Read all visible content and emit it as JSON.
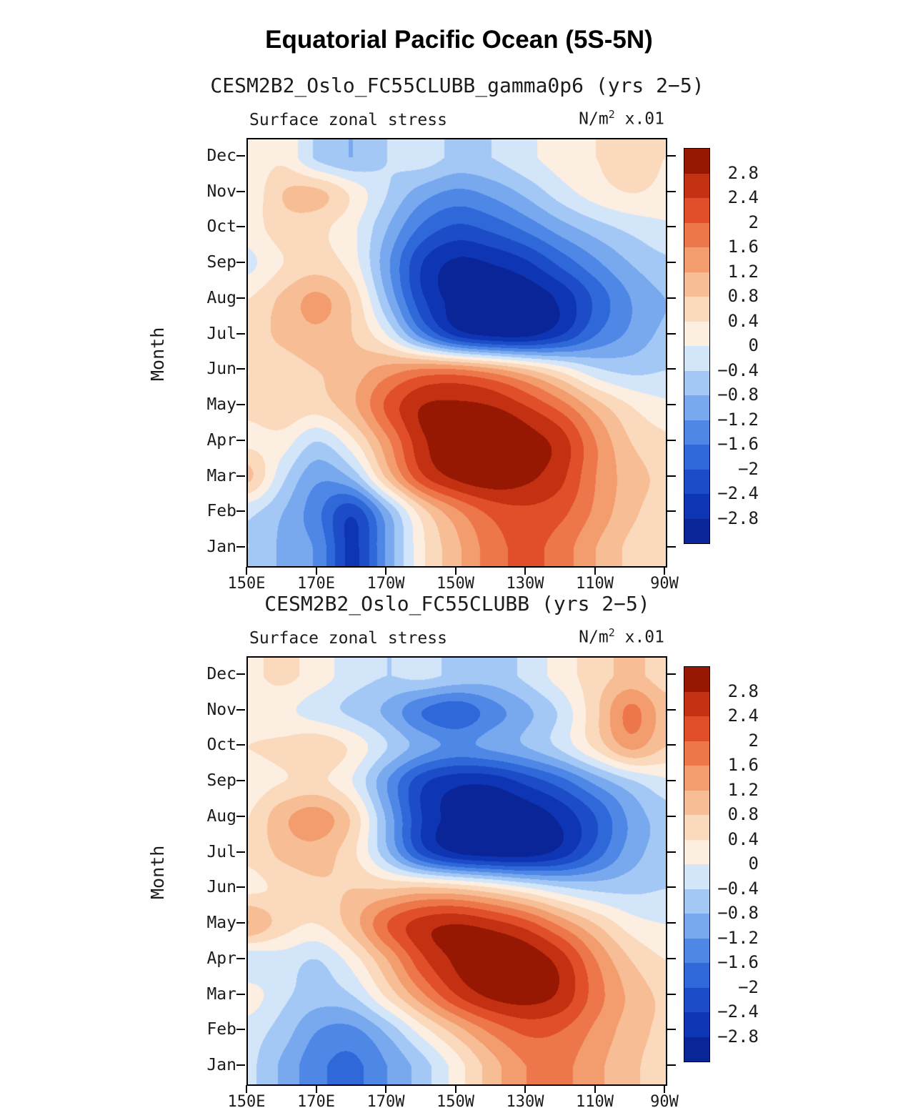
{
  "page": {
    "title": "Equatorial Pacific Ocean (5S-5N)"
  },
  "panels": [
    {
      "title": "CESM2B2_Oslo_FC55CLUBB_gamma0p6 (yrs 2−5)",
      "field_label": "Surface zonal stress",
      "units": {
        "prefix": "N/m",
        "exp": "2",
        "suffix": " x.01"
      },
      "ylabel": "Month"
    },
    {
      "title": "CESM2B2_Oslo_FC55CLUBB (yrs 2−5)",
      "field_label": "Surface zonal stress",
      "units": {
        "prefix": "N/m",
        "exp": "2",
        "suffix": " x.01"
      },
      "ylabel": "Month"
    }
  ],
  "colorbar": {
    "tick_labels": [
      "2.8",
      "2.4",
      "2",
      "1.6",
      "1.2",
      "0.8",
      "0.4",
      "0",
      "−0.4",
      "−0.8",
      "−1.2",
      "−1.6",
      "−2",
      "−2.4",
      "−2.8"
    ],
    "levels": [
      -2.8,
      -2.4,
      -2,
      -1.6,
      -1.2,
      -0.8,
      -0.4,
      0,
      0.4,
      0.8,
      1.2,
      1.6,
      2,
      2.4,
      2.8
    ],
    "colors": [
      "#0A2598",
      "#0E36B4",
      "#1C4CC8",
      "#2F68D9",
      "#4E87E6",
      "#78A9EF",
      "#A4C8F5",
      "#D3E5F9",
      "#FCEEE1",
      "#FAD9BC",
      "#F7BD95",
      "#F39C6E",
      "#ED774A",
      "#E04F29",
      "#C33112",
      "#961803"
    ]
  },
  "chart_data": [
    {
      "type": "heatmap",
      "title": "CESM2B2_Oslo_FC55CLUBB_gamma0p6 (yrs 2−5)",
      "field": "Surface zonal stress",
      "units": "N/m^2 x.01",
      "x_ticks": [
        "150E",
        "170E",
        "170W",
        "150W",
        "130W",
        "110W",
        "90W"
      ],
      "x_grid_lon_degE": [
        150,
        160,
        170,
        180,
        190,
        200,
        210,
        220,
        230,
        240,
        250,
        260,
        270
      ],
      "y_categories": [
        "Jan",
        "Feb",
        "Mar",
        "Apr",
        "May",
        "Jun",
        "Jul",
        "Aug",
        "Sep",
        "Oct",
        "Nov",
        "Dec"
      ],
      "levels_min": -2.8,
      "levels_max": 2.8,
      "levels_step": 0.4,
      "values_rows_jan_to_dec": [
        [
          -0.4,
          -0.9,
          -1.3,
          -2.5,
          -1.1,
          0.3,
          1.1,
          1.8,
          2.1,
          1.8,
          1.2,
          0.7,
          0.5
        ],
        [
          -0.3,
          -0.8,
          -1.5,
          -2.3,
          -0.9,
          0.6,
          1.5,
          2.1,
          2.3,
          2.1,
          1.5,
          0.9,
          0.6
        ],
        [
          0.9,
          -0.3,
          -1.1,
          -0.7,
          0.9,
          2.3,
          2.9,
          3.1,
          2.9,
          2.5,
          1.6,
          1.0,
          0.7
        ],
        [
          0.3,
          0.2,
          -0.4,
          0.3,
          1.5,
          2.7,
          3.1,
          3.2,
          3.0,
          2.6,
          1.6,
          0.8,
          0.5
        ],
        [
          0.5,
          0.7,
          0.6,
          1.1,
          2.1,
          2.8,
          2.9,
          2.8,
          2.4,
          1.8,
          1.0,
          0.4,
          0.1
        ],
        [
          0.4,
          0.6,
          0.8,
          1.0,
          1.4,
          1.7,
          1.7,
          1.4,
          0.9,
          0.3,
          -0.3,
          -0.5,
          -0.4
        ],
        [
          0.6,
          0.9,
          1.1,
          0.8,
          0.0,
          -1.4,
          -2.5,
          -2.9,
          -2.9,
          -2.4,
          -1.6,
          -1.1,
          -0.7
        ],
        [
          0.4,
          0.9,
          1.3,
          0.7,
          -0.8,
          -2.3,
          -3.0,
          -3.2,
          -3.1,
          -2.7,
          -1.9,
          -1.2,
          -0.8
        ],
        [
          -0.1,
          0.4,
          0.6,
          0.2,
          -1.1,
          -2.4,
          -2.9,
          -2.8,
          -2.5,
          -1.9,
          -1.3,
          -0.8,
          -0.5
        ],
        [
          0.2,
          0.6,
          0.5,
          0.1,
          -0.8,
          -1.7,
          -2.1,
          -1.9,
          -1.5,
          -1.0,
          -0.6,
          -0.3,
          -0.1
        ],
        [
          0.1,
          0.8,
          0.9,
          0.3,
          -0.4,
          -1.0,
          -1.3,
          -1.1,
          -0.7,
          -0.2,
          0.2,
          0.4,
          0.3
        ],
        [
          0.1,
          0.3,
          -0.5,
          -0.8,
          -0.4,
          -0.2,
          -0.5,
          -0.4,
          -0.1,
          0.2,
          0.4,
          0.5,
          0.4
        ]
      ]
    },
    {
      "type": "heatmap",
      "title": "CESM2B2_Oslo_FC55CLUBB (yrs 2−5)",
      "field": "Surface zonal stress",
      "units": "N/m^2 x.01",
      "x_ticks": [
        "150E",
        "170E",
        "170W",
        "150W",
        "130W",
        "110W",
        "90W"
      ],
      "x_grid_lon_degE": [
        150,
        160,
        170,
        180,
        190,
        200,
        210,
        220,
        230,
        240,
        250,
        260,
        270
      ],
      "y_categories": [
        "Jan",
        "Feb",
        "Mar",
        "Apr",
        "May",
        "Jun",
        "Jul",
        "Aug",
        "Sep",
        "Oct",
        "Nov",
        "Dec"
      ],
      "levels_min": -2.8,
      "levels_max": 2.8,
      "levels_step": 0.4,
      "values_rows_jan_to_dec": [
        [
          -0.3,
          -0.9,
          -1.5,
          -1.7,
          -1.2,
          -0.6,
          0.2,
          1.0,
          1.6,
          1.7,
          1.3,
          0.9,
          0.6
        ],
        [
          -0.2,
          -0.6,
          -1.2,
          -1.3,
          -0.7,
          0.2,
          1.0,
          1.7,
          2.1,
          2.0,
          1.5,
          1.0,
          0.7
        ],
        [
          0.2,
          -0.3,
          -0.6,
          -0.4,
          0.5,
          1.5,
          2.4,
          2.9,
          3.0,
          2.7,
          1.8,
          1.1,
          0.7
        ],
        [
          -0.3,
          -0.2,
          -0.4,
          0.2,
          1.2,
          2.3,
          2.9,
          3.2,
          3.1,
          2.6,
          1.6,
          0.8,
          0.4
        ],
        [
          1.2,
          0.6,
          0.4,
          1.0,
          2.0,
          2.6,
          2.8,
          2.6,
          2.2,
          1.5,
          0.8,
          0.2,
          0.0
        ],
        [
          0.3,
          0.5,
          0.7,
          0.8,
          0.8,
          0.9,
          0.8,
          0.5,
          0.1,
          -0.3,
          -0.5,
          -0.5,
          -0.4
        ],
        [
          0.5,
          0.9,
          1.0,
          0.5,
          -0.7,
          -2.1,
          -2.8,
          -3.0,
          -3.0,
          -2.6,
          -1.8,
          -1.0,
          -0.6
        ],
        [
          0.4,
          1.1,
          1.4,
          0.7,
          -0.9,
          -2.4,
          -3.0,
          -3.2,
          -3.1,
          -2.7,
          -2.0,
          -1.1,
          -0.6
        ],
        [
          0.2,
          0.4,
          0.5,
          0.0,
          -1.2,
          -2.3,
          -2.7,
          -2.7,
          -2.3,
          -1.8,
          -1.1,
          -0.5,
          -0.1
        ],
        [
          0.4,
          0.5,
          0.7,
          0.3,
          -0.4,
          -1.0,
          -1.3,
          -1.1,
          -0.8,
          -0.3,
          0.5,
          1.3,
          0.8
        ],
        [
          0.2,
          0.1,
          -0.2,
          -0.5,
          -0.9,
          -1.6,
          -1.9,
          -1.4,
          -0.9,
          -0.3,
          0.7,
          1.7,
          1.0
        ],
        [
          0.3,
          0.5,
          0.2,
          -0.2,
          -0.4,
          -0.3,
          -0.5,
          -0.6,
          -0.3,
          0.2,
          0.6,
          0.9,
          0.6
        ]
      ]
    }
  ]
}
